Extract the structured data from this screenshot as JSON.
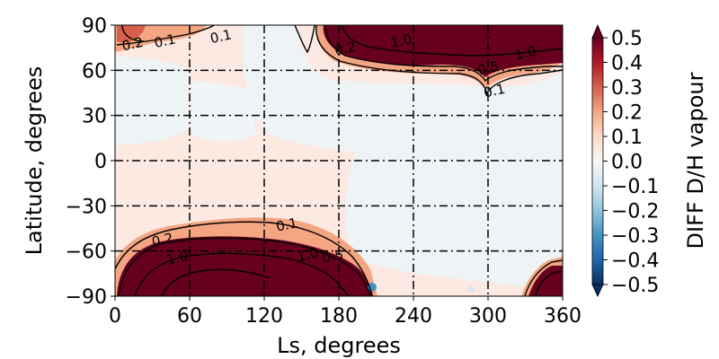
{
  "chart_data": {
    "type": "heatmap",
    "title": "",
    "xlabel": "Ls, degrees",
    "ylabel": "Latitude, degrees",
    "xlim": [
      0,
      360
    ],
    "ylim": [
      -90,
      90
    ],
    "xticks": [
      0,
      60,
      120,
      180,
      240,
      300,
      360
    ],
    "yticks": [
      -90,
      -60,
      -30,
      0,
      30,
      60,
      90
    ],
    "xtick_labels": [
      "0",
      "60",
      "120",
      "180",
      "240",
      "300",
      "360"
    ],
    "ytick_labels": [
      "−90",
      "−60",
      "−30",
      "0",
      "30",
      "60",
      "90"
    ],
    "grid": true,
    "colorbar": {
      "label": "DIFF D/H vapour",
      "min": -0.5,
      "max": 0.5,
      "ticks": [
        "0.5",
        "0.4",
        "0.3",
        "0.2",
        "0.1",
        "0.0",
        "−0.1",
        "−0.2",
        "−0.3",
        "−0.4",
        "−0.5"
      ],
      "colormap": "RdBu_r",
      "extend": "both"
    },
    "contour_labels": [
      {
        "text": "0.2",
        "ls": 14,
        "lat": 78
      },
      {
        "text": "0.1",
        "ls": 40,
        "lat": 80
      },
      {
        "text": "0.1",
        "ls": 85,
        "lat": 83
      },
      {
        "text": "0.2",
        "ls": 185,
        "lat": 75
      },
      {
        "text": "1.0",
        "ls": 230,
        "lat": 80
      },
      {
        "text": "1.0",
        "ls": 330,
        "lat": 72
      },
      {
        "text": "0.5",
        "ls": 300,
        "lat": 62
      },
      {
        "text": "0.1",
        "ls": 305,
        "lat": 47
      },
      {
        "text": "0.1",
        "ls": 138,
        "lat": -42
      },
      {
        "text": "0.2",
        "ls": 38,
        "lat": -52
      },
      {
        "text": "1.0",
        "ls": 50,
        "lat": -64
      },
      {
        "text": "1.0",
        "ls": 155,
        "lat": -62
      },
      {
        "text": "0.5",
        "ls": 175,
        "lat": -63
      }
    ]
  }
}
